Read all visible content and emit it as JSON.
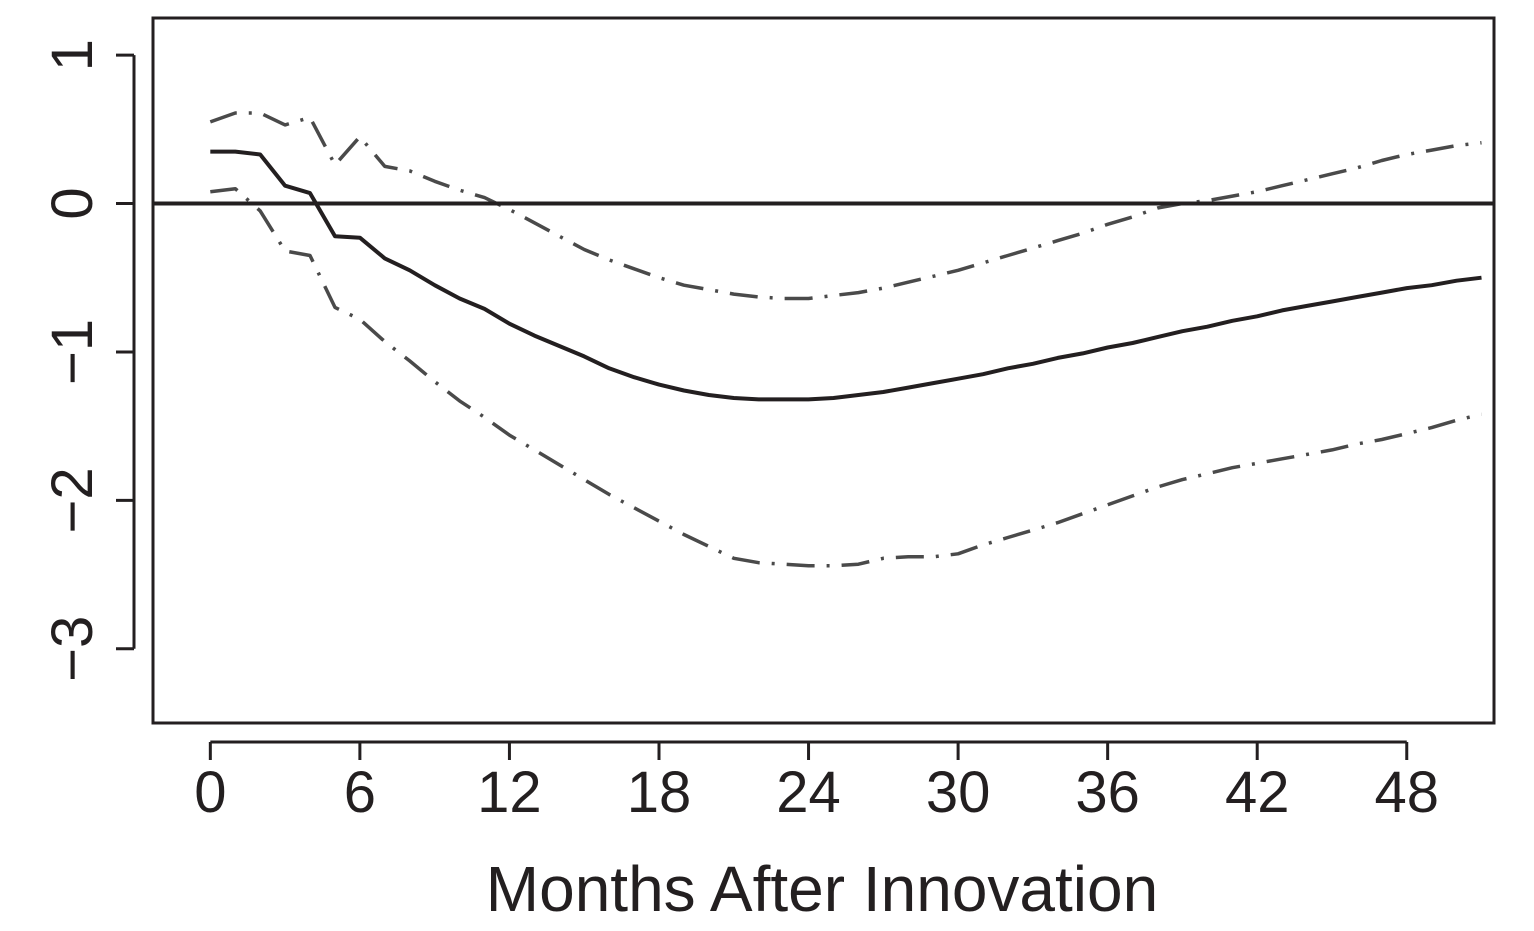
{
  "chart_data": {
    "type": "line",
    "title": "",
    "xlabel": "Months After Innovation",
    "ylabel": "",
    "xlim": [
      -2.3,
      51.5
    ],
    "ylim": [
      -3.5,
      1.25
    ],
    "x_ticks": [
      0,
      6,
      12,
      18,
      24,
      30,
      36,
      42,
      48
    ],
    "y_ticks": [
      1,
      0,
      -1,
      -2,
      -3
    ],
    "x_tick_labels": [
      "0",
      "6",
      "12",
      "18",
      "24",
      "30",
      "36",
      "42",
      "48"
    ],
    "y_tick_labels": [
      "1",
      "0",
      "−1",
      "−2",
      "−3"
    ],
    "grid": false,
    "reference_line": {
      "y": 0
    },
    "x": [
      0,
      1,
      2,
      3,
      4,
      5,
      6,
      7,
      8,
      9,
      10,
      11,
      12,
      13,
      14,
      15,
      16,
      17,
      18,
      19,
      20,
      21,
      22,
      23,
      24,
      25,
      26,
      27,
      28,
      29,
      30,
      31,
      32,
      33,
      34,
      35,
      36,
      37,
      38,
      39,
      40,
      41,
      42,
      43,
      44,
      45,
      46,
      47,
      48,
      49,
      50,
      51
    ],
    "series": [
      {
        "style": "solid",
        "color": "#231f20",
        "values": [
          0.35,
          0.35,
          0.33,
          0.12,
          0.07,
          -0.22,
          -0.23,
          -0.37,
          -0.45,
          -0.55,
          -0.64,
          -0.71,
          -0.81,
          -0.89,
          -0.96,
          -1.03,
          -1.11,
          -1.17,
          -1.22,
          -1.26,
          -1.29,
          -1.31,
          -1.32,
          -1.32,
          -1.32,
          -1.31,
          -1.29,
          -1.27,
          -1.24,
          -1.21,
          -1.18,
          -1.15,
          -1.11,
          -1.08,
          -1.04,
          -1.01,
          -0.97,
          -0.94,
          -0.9,
          -0.86,
          -0.83,
          -0.79,
          -0.76,
          -0.72,
          -0.69,
          -0.66,
          -0.63,
          -0.6,
          -0.57,
          -0.55,
          -0.52,
          -0.5
        ]
      },
      {
        "style": "dash-dot",
        "color": "#4a4a4a",
        "values": [
          0.55,
          0.61,
          0.61,
          0.53,
          0.58,
          0.26,
          0.45,
          0.25,
          0.22,
          0.15,
          0.09,
          0.04,
          -0.04,
          -0.13,
          -0.22,
          -0.31,
          -0.38,
          -0.44,
          -0.5,
          -0.55,
          -0.58,
          -0.61,
          -0.63,
          -0.64,
          -0.64,
          -0.62,
          -0.6,
          -0.57,
          -0.53,
          -0.49,
          -0.45,
          -0.4,
          -0.35,
          -0.3,
          -0.25,
          -0.2,
          -0.14,
          -0.09,
          -0.03,
          0.0,
          0.02,
          0.05,
          0.08,
          0.12,
          0.16,
          0.2,
          0.24,
          0.29,
          0.33,
          0.36,
          0.39,
          0.41
        ]
      },
      {
        "style": "dash-dot",
        "color": "#4a4a4a",
        "values": [
          0.08,
          0.1,
          -0.05,
          -0.32,
          -0.35,
          -0.7,
          -0.78,
          -0.93,
          -1.06,
          -1.2,
          -1.33,
          -1.44,
          -1.56,
          -1.66,
          -1.76,
          -1.86,
          -1.96,
          -2.05,
          -2.14,
          -2.23,
          -2.31,
          -2.39,
          -2.42,
          -2.43,
          -2.44,
          -2.44,
          -2.43,
          -2.39,
          -2.38,
          -2.38,
          -2.36,
          -2.3,
          -2.25,
          -2.2,
          -2.15,
          -2.09,
          -2.03,
          -1.97,
          -1.91,
          -1.86,
          -1.82,
          -1.78,
          -1.75,
          -1.72,
          -1.69,
          -1.66,
          -1.62,
          -1.59,
          -1.55,
          -1.51,
          -1.46,
          -1.42
        ]
      }
    ]
  }
}
